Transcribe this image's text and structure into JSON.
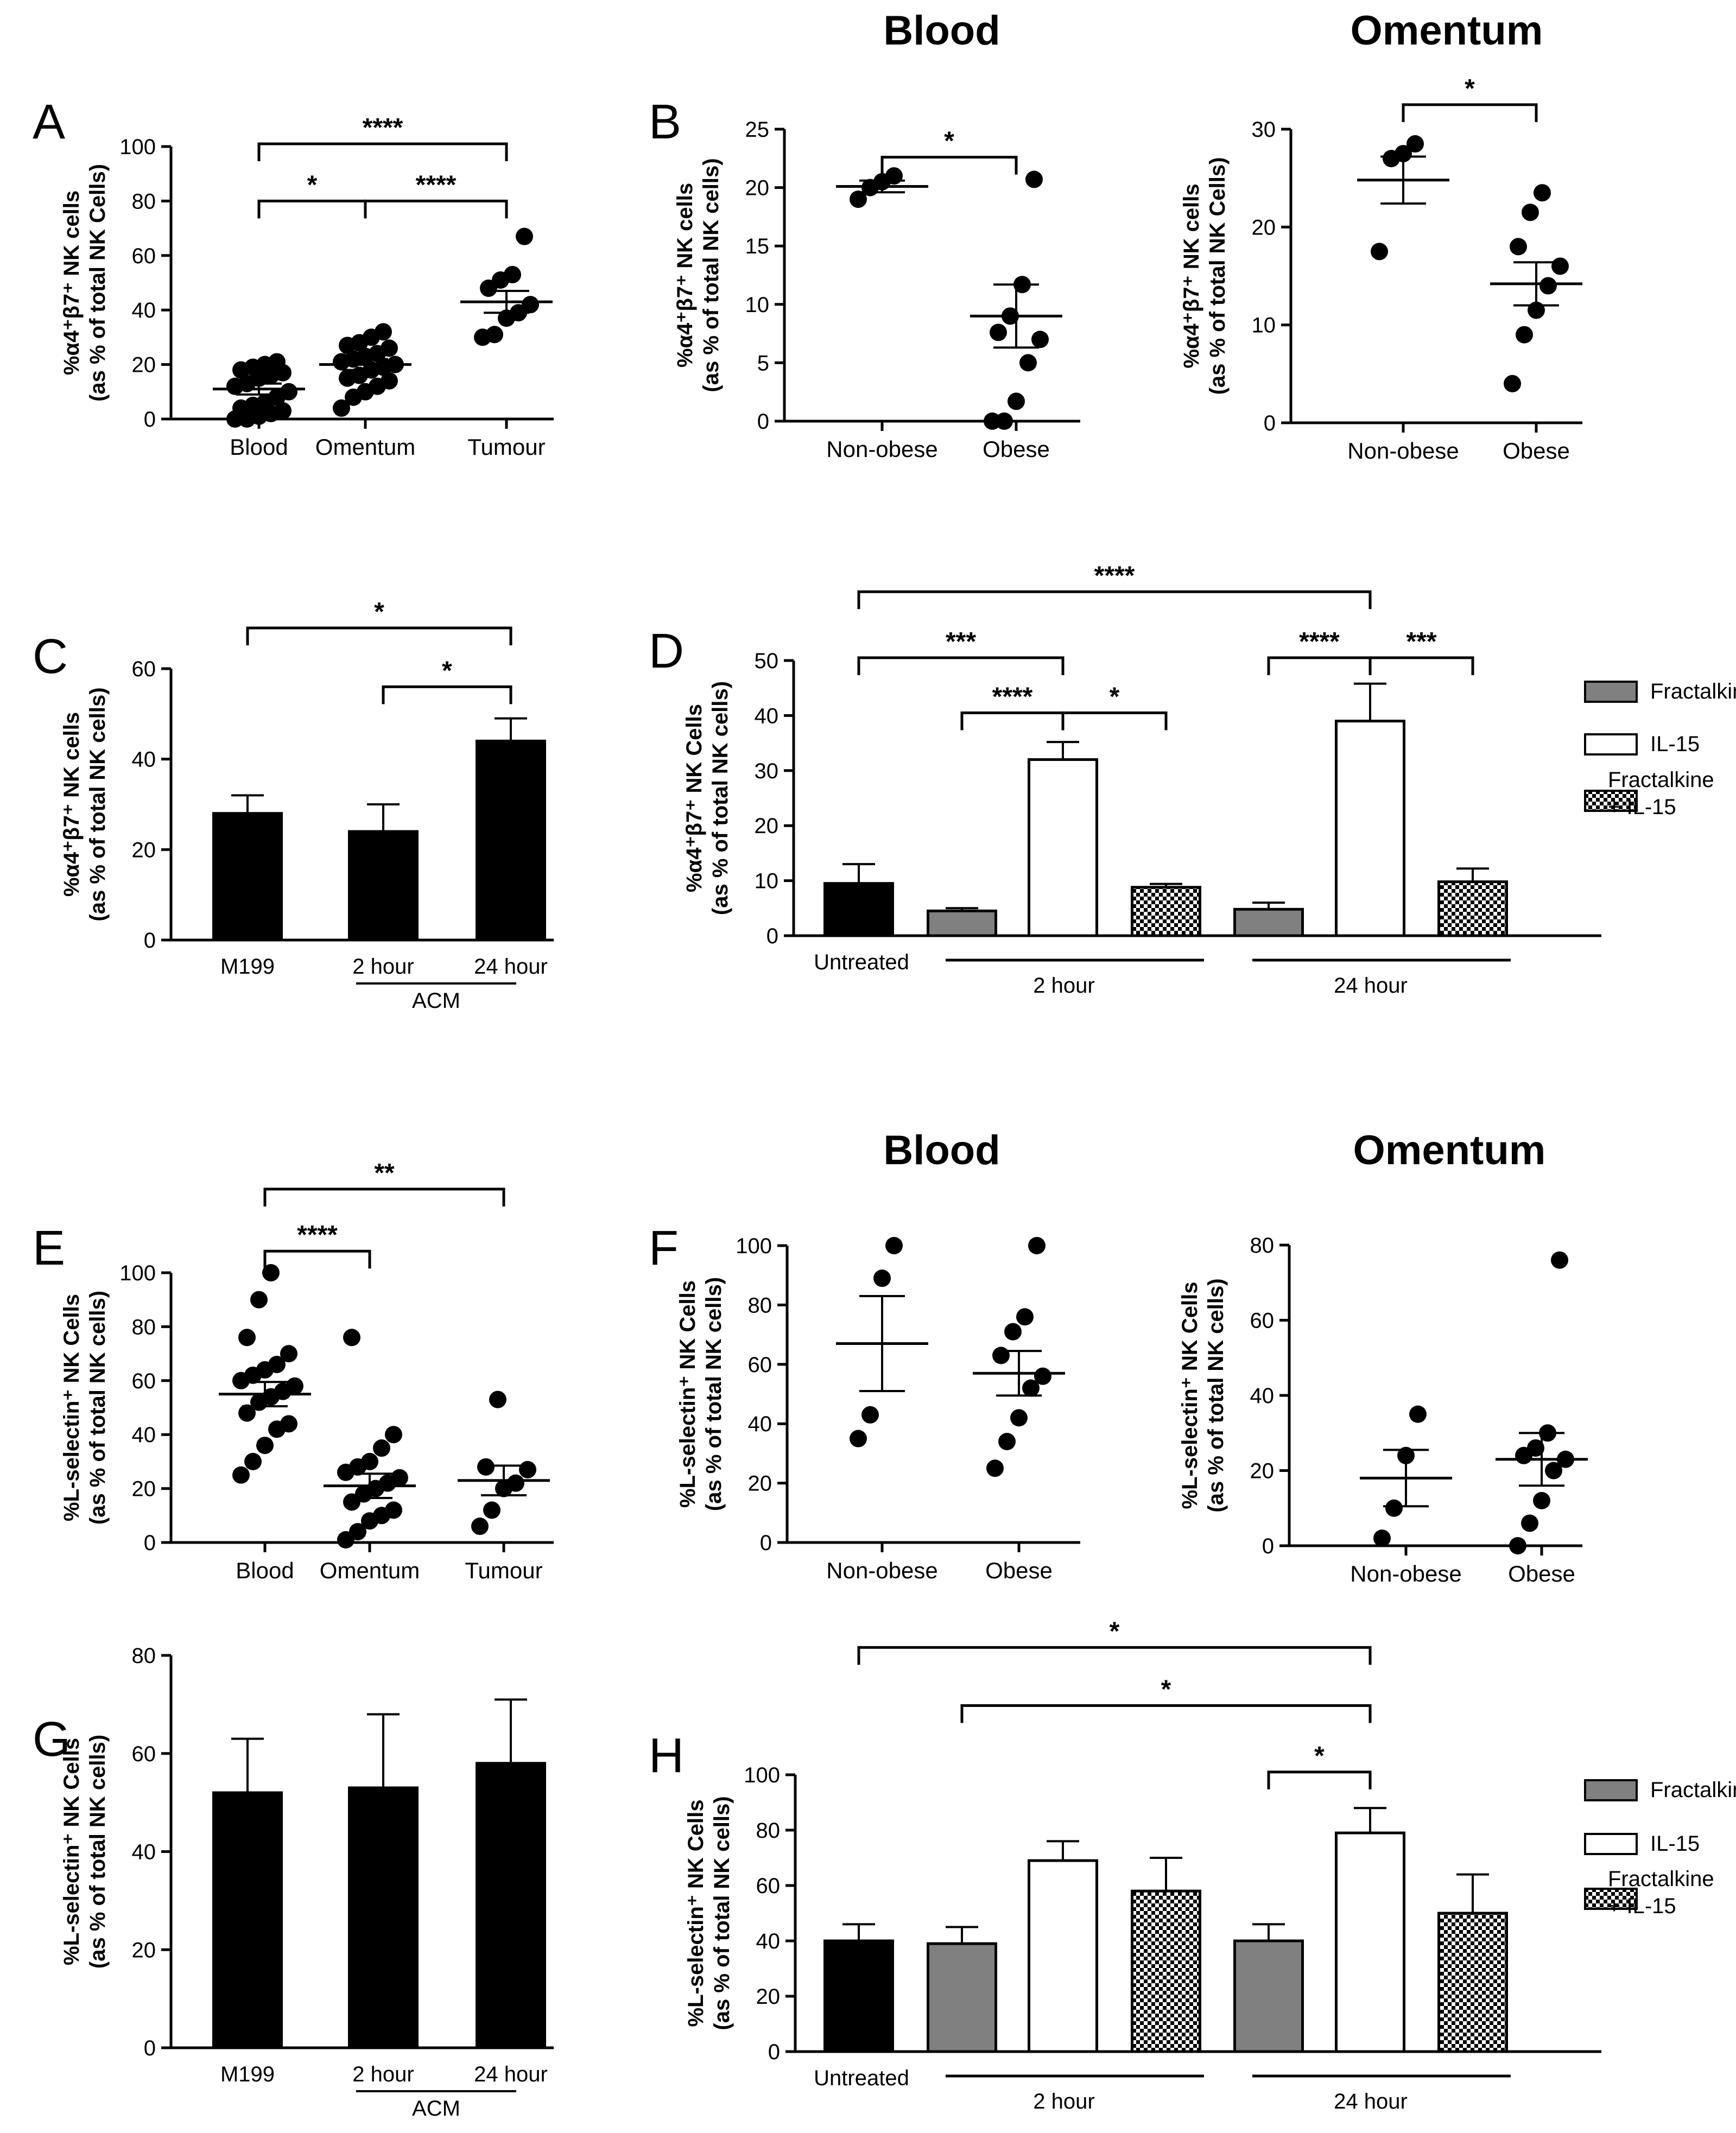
{
  "colors": {
    "black": "#000000",
    "gray": "#808080",
    "white": "#ffffff",
    "text": "#000000"
  },
  "headers": {
    "blood_top": "Blood",
    "omentum_top": "Omentum",
    "blood_bottom": "Blood",
    "omentum_bottom": "Omentum"
  },
  "legend": {
    "fractalkine": "Fractalkine",
    "il15": "IL-15",
    "combo_line1": "Fractalkine",
    "combo_line2": "+ IL-15"
  },
  "chart_data": [
    {
      "id": "A",
      "type": "scatter",
      "panel_letter": "A",
      "ylabel_line1": "%α4⁺β7⁺ NK cells",
      "ylabel_line2": "(as % of total NK Cells)",
      "ylim": [
        0,
        100
      ],
      "yticks": [
        0,
        20,
        40,
        60,
        80,
        100
      ],
      "categories": [
        "Blood",
        "Omentum",
        "Tumour"
      ],
      "points": [
        [
          0,
          0,
          1,
          2,
          3,
          4,
          5,
          6,
          8,
          10,
          12,
          13,
          15,
          16,
          17,
          18,
          19,
          20,
          21
        ],
        [
          4,
          8,
          10,
          12,
          14,
          15,
          16,
          18,
          19,
          20,
          21,
          22,
          23,
          24,
          26,
          27,
          28,
          30,
          32
        ],
        [
          30,
          31,
          37,
          39,
          42,
          48,
          51,
          53,
          67
        ]
      ],
      "means": [
        11,
        20,
        43
      ],
      "sems": [
        2,
        2,
        4
      ],
      "brackets": [
        {
          "from": 0,
          "to": 1,
          "label": "*",
          "level": 80
        },
        {
          "from": 1,
          "to": 2,
          "label": "****",
          "level": 80
        },
        {
          "from": 0,
          "to": 2,
          "label": "****",
          "level": 101
        }
      ]
    },
    {
      "id": "B_blood",
      "type": "scatter",
      "panel_letter": "B",
      "ylabel_line1": "%α4⁺β7⁺ NK cells",
      "ylabel_line2": "(as % of total NK cells)",
      "ylim": [
        0,
        25
      ],
      "yticks": [
        0,
        5,
        10,
        15,
        20,
        25
      ],
      "categories": [
        "Non-obese",
        "Obese"
      ],
      "points": [
        [
          19,
          20,
          20.5,
          21
        ],
        [
          0,
          0,
          1.7,
          5,
          7,
          7.6,
          9,
          11.7,
          20.7
        ]
      ],
      "means": [
        20.1,
        9
      ],
      "sems": [
        0.5,
        2.7
      ],
      "brackets": [
        {
          "from": 0,
          "to": 1,
          "label": "*",
          "level": 22.6
        }
      ]
    },
    {
      "id": "B_omentum",
      "type": "scatter",
      "ylabel_line1": "%α4⁺β7⁺ NK cells",
      "ylabel_line2": "(as % of total NK Cells)",
      "ylim": [
        0,
        30
      ],
      "yticks": [
        0,
        10,
        20,
        30
      ],
      "categories": [
        "Non-obese",
        "Obese"
      ],
      "points": [
        [
          17.5,
          27,
          27.5,
          28.5
        ],
        [
          4,
          9,
          11.5,
          14,
          16,
          18,
          21.5,
          23.5
        ]
      ],
      "means": [
        24.8,
        14.2
      ],
      "sems": [
        2.4,
        2.2
      ],
      "brackets": [
        {
          "from": 0,
          "to": 1,
          "label": "*",
          "level": 32.5
        }
      ]
    },
    {
      "id": "C",
      "type": "bar",
      "panel_letter": "C",
      "ylabel_line1": "%α4⁺β7⁺ NK cells",
      "ylabel_line2": "(as % of total NK cells)",
      "ylim": [
        0,
        60
      ],
      "yticks": [
        0,
        20,
        40,
        60
      ],
      "categories": [
        "M199",
        "2 hour",
        "24 hour"
      ],
      "values": [
        28,
        24,
        44
      ],
      "errors": [
        4,
        6,
        5
      ],
      "group_label": "ACM",
      "brackets": [
        {
          "from": 1,
          "to": 2,
          "label": "*",
          "level": 56
        },
        {
          "from": 0,
          "to": 2,
          "label": "*",
          "level": 69
        }
      ]
    },
    {
      "id": "D",
      "type": "bar",
      "panel_letter": "D",
      "ylabel_line1": "%α4⁺β7⁺ NK Cells",
      "ylabel_line2": "(as % of total NK cells)",
      "ylim": [
        0,
        50
      ],
      "yticks": [
        0,
        10,
        20,
        30,
        40,
        50
      ],
      "categories": [
        "Untreated",
        "Fractalkine",
        "IL-15",
        "Fractalkine + IL-15",
        "Fractalkine",
        "IL-15",
        "Fractalkine + IL-15"
      ],
      "values": [
        9.5,
        4.5,
        32,
        8.8,
        4.8,
        39,
        9.8
      ],
      "errors": [
        3.5,
        0.5,
        3.2,
        0.6,
        1.2,
        6.8,
        2.4
      ],
      "group_labels": [
        "2 hour",
        "24 hour"
      ],
      "first_label": "Untreated",
      "brackets": [
        {
          "from": 1,
          "to": 2,
          "label": "****",
          "level": 40.5
        },
        {
          "from": 2,
          "to": 3,
          "label": "*",
          "level": 40.5
        },
        {
          "from": 4,
          "to": 5,
          "label": "****",
          "level": 50.5
        },
        {
          "from": 5,
          "to": 6,
          "label": "***",
          "level": 50.5
        },
        {
          "from": 0,
          "to": 2,
          "label": "***",
          "level": 50.5
        },
        {
          "from": 0,
          "to": 5,
          "label": "****",
          "level": 62.5
        }
      ]
    },
    {
      "id": "E",
      "type": "scatter",
      "panel_letter": "E",
      "ylabel_line1": "%L-selectin⁺ NK Cells",
      "ylabel_line2": "(as % of total NK cells)",
      "ylim": [
        0,
        100
      ],
      "yticks": [
        0,
        20,
        40,
        60,
        80,
        100
      ],
      "categories": [
        "Blood",
        "Omentum",
        "Tumour"
      ],
      "points": [
        [
          25,
          30,
          36,
          42,
          44,
          48,
          52,
          54,
          56,
          58,
          60,
          62,
          64,
          66,
          70,
          76,
          90,
          100
        ],
        [
          1,
          4,
          8,
          10,
          12,
          15,
          18,
          20,
          22,
          24,
          26,
          28,
          30,
          35,
          40,
          76
        ],
        [
          6,
          12,
          20,
          22,
          27,
          28,
          53
        ]
      ],
      "means": [
        55,
        21,
        23
      ],
      "sems": [
        4.5,
        4.5,
        5.5
      ],
      "brackets": [
        {
          "from": 0,
          "to": 1,
          "label": "****",
          "level": 108
        },
        {
          "from": 0,
          "to": 2,
          "label": "**",
          "level": 131
        }
      ]
    },
    {
      "id": "F_blood",
      "type": "scatter",
      "panel_letter": "F",
      "ylabel_line1": "%L-selectin⁺ NK Cells",
      "ylabel_line2": "(as % of total NK cells)",
      "ylim": [
        0,
        100
      ],
      "yticks": [
        0,
        20,
        40,
        60,
        80,
        100
      ],
      "categories": [
        "Non-obese",
        "Obese"
      ],
      "points": [
        [
          35,
          43,
          89,
          100
        ],
        [
          25,
          34,
          42,
          52,
          56,
          63,
          71,
          76,
          100
        ]
      ],
      "means": [
        67,
        57
      ],
      "sems": [
        16,
        7.5
      ],
      "brackets": []
    },
    {
      "id": "F_omentum",
      "type": "scatter",
      "ylabel_line1": "%L-selectin⁺ NK Cells",
      "ylabel_line2": "(as % of total NK cells)",
      "ylim": [
        0,
        80
      ],
      "yticks": [
        0,
        20,
        40,
        60,
        80
      ],
      "categories": [
        "Non-obese",
        "Obese"
      ],
      "points": [
        [
          2,
          10,
          24,
          35
        ],
        [
          0,
          6,
          12,
          20,
          23,
          24,
          26,
          30,
          76
        ]
      ],
      "means": [
        18,
        23
      ],
      "sems": [
        7.5,
        7
      ],
      "brackets": []
    },
    {
      "id": "G",
      "type": "bar",
      "panel_letter": "G",
      "ylabel_line1": "%L-selectin⁺ NK Cells",
      "ylabel_line2": "(as % of total NK cells)",
      "ylim": [
        0,
        80
      ],
      "yticks": [
        0,
        20,
        40,
        60,
        80
      ],
      "categories": [
        "M199",
        "2 hour",
        "24 hour"
      ],
      "values": [
        52,
        53,
        58
      ],
      "errors": [
        11,
        15,
        13
      ],
      "group_label": "ACM",
      "brackets": []
    },
    {
      "id": "H",
      "type": "bar",
      "panel_letter": "H",
      "ylabel_line1": "%L-selectin⁺ NK Cells",
      "ylabel_line2": "(as % of total NK cells)",
      "ylim": [
        0,
        100
      ],
      "yticks": [
        0,
        20,
        40,
        60,
        80,
        100
      ],
      "categories": [
        "Untreated",
        "Fractalkine",
        "IL-15",
        "Fractalkine + IL-15",
        "Fractalkine",
        "IL-15",
        "Fractalkine + IL-15"
      ],
      "values": [
        40,
        39,
        69,
        58,
        40,
        79,
        50
      ],
      "errors": [
        6,
        6,
        7,
        12,
        6,
        9,
        14
      ],
      "group_labels": [
        "2 hour",
        "24 hour"
      ],
      "first_label": "Untreated",
      "brackets": [
        {
          "from": 4,
          "to": 5,
          "label": "*",
          "level": 101
        },
        {
          "from": 1,
          "to": 5,
          "label": "*",
          "level": 125
        },
        {
          "from": 0,
          "to": 5,
          "label": "*",
          "level": 146
        }
      ]
    }
  ]
}
